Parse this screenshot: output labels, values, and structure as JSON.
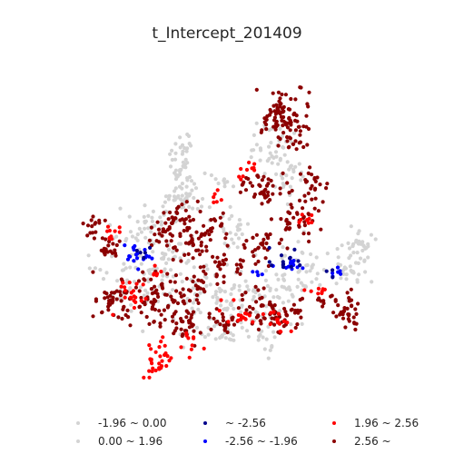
{
  "chart_data": {
    "type": "scatter",
    "title": "t_Intercept_201409",
    "axes_visible": false,
    "legend_placement": "bottom",
    "legend": [
      {
        "label": "-1.96 ~ 0.00",
        "color": "#d3d3d3"
      },
      {
        "label": "0.00 ~ 1.96",
        "color": "#d3d3d3"
      },
      {
        "label": "~ -2.56",
        "color": "#00008b"
      },
      {
        "label": "-2.56 ~ -1.96",
        "color": "#0000ff"
      },
      {
        "label": "1.96 ~ 2.56",
        "color": "#ff0000"
      },
      {
        "label": "2.56 ~",
        "color": "#8b0000"
      }
    ]
  }
}
